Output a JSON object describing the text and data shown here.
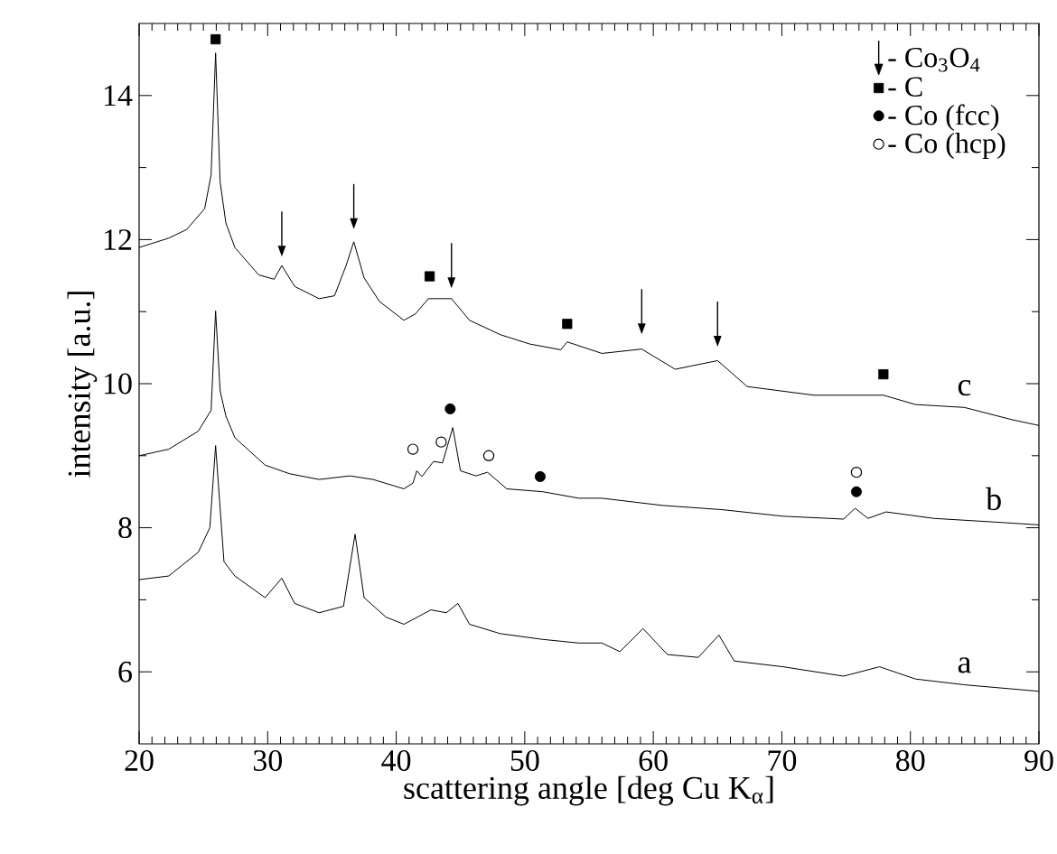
{
  "chart_data": {
    "type": "line",
    "xlabel": "scattering angle  [deg Cu K$_{α}$]",
    "ylabel": "intensity  [a.u.]",
    "xlim": [
      20,
      90
    ],
    "ylim": [
      5,
      15
    ],
    "xticks": [
      20,
      30,
      40,
      50,
      60,
      70,
      80,
      90
    ],
    "yticks": [
      6,
      8,
      10,
      12,
      14
    ],
    "legend": "top right",
    "series": [
      {
        "name": "c",
        "type": "line",
        "color": "#000000",
        "x": [
          20,
          22.3,
          23.7,
          25.1,
          25.6,
          25.95,
          26.3,
          26.75,
          27.45,
          29.3,
          30.5,
          31.1,
          32.1,
          34.0,
          35.2,
          36.1,
          36.7,
          37.5,
          38.7,
          40.6,
          41.5,
          42.5,
          44.3,
          45.7,
          48.1,
          50.4,
          52.8,
          53.3,
          56.0,
          59.1,
          61.7,
          65.0,
          67.3,
          72.5,
          77.9,
          80.4,
          84.2,
          87.9,
          90
        ],
        "values": [
          11.89,
          12.02,
          12.14,
          12.43,
          12.9,
          14.59,
          12.8,
          12.23,
          11.89,
          11.51,
          11.45,
          11.64,
          11.35,
          11.18,
          11.22,
          11.64,
          11.97,
          11.47,
          11.14,
          10.88,
          10.97,
          11.18,
          11.18,
          10.88,
          10.68,
          10.55,
          10.47,
          10.58,
          10.42,
          10.48,
          10.2,
          10.32,
          9.96,
          9.84,
          9.84,
          9.71,
          9.67,
          9.5,
          9.42
        ]
      },
      {
        "name": "b",
        "type": "line",
        "color": "#000000",
        "x": [
          20,
          22.3,
          24.6,
          25.6,
          25.95,
          26.3,
          26.75,
          27.45,
          29.8,
          31.7,
          34.0,
          36.4,
          38.2,
          40.6,
          41.3,
          41.6,
          42.0,
          42.9,
          43.6,
          44.4,
          45.0,
          46.2,
          47.1,
          48.6,
          51.4,
          54.2,
          56.0,
          60.7,
          65.4,
          70.1,
          74.8,
          75.7,
          76.7,
          78.1,
          81.8,
          86.5,
          90
        ],
        "values": [
          9.0,
          9.09,
          9.34,
          9.63,
          11.01,
          9.9,
          9.55,
          9.25,
          8.87,
          8.75,
          8.67,
          8.72,
          8.67,
          8.54,
          8.62,
          8.79,
          8.71,
          8.92,
          8.9,
          9.39,
          8.79,
          8.72,
          8.77,
          8.54,
          8.5,
          8.41,
          8.41,
          8.31,
          8.25,
          8.16,
          8.12,
          8.27,
          8.13,
          8.22,
          8.13,
          8.08,
          8.04
        ]
      },
      {
        "name": "a",
        "type": "line",
        "color": "#000000",
        "x": [
          20,
          22.3,
          24.6,
          25.5,
          25.95,
          26.6,
          27.45,
          29.8,
          31.1,
          32.1,
          34.0,
          35.9,
          36.8,
          37.5,
          39.2,
          40.6,
          42.7,
          43.9,
          44.8,
          45.7,
          48.1,
          51.4,
          54.2,
          56.0,
          57.4,
          59.2,
          61.1,
          63.5,
          65.1,
          66.3,
          70.1,
          74.8,
          77.6,
          80.4,
          84.2,
          90
        ],
        "values": [
          7.28,
          7.33,
          7.66,
          8.0,
          9.14,
          7.53,
          7.33,
          7.03,
          7.3,
          6.95,
          6.82,
          6.91,
          7.91,
          7.03,
          6.76,
          6.66,
          6.86,
          6.82,
          6.95,
          6.66,
          6.53,
          6.45,
          6.4,
          6.4,
          6.28,
          6.6,
          6.24,
          6.2,
          6.51,
          6.15,
          6.07,
          5.94,
          6.07,
          5.9,
          5.82,
          5.73
        ]
      },
      {
        "name": "- Co$_{3}$O$_{4}$",
        "type": "scatter",
        "marker": "triangle",
        "color": "#000000",
        "x": [
          31.1,
          36.7,
          44.3,
          59.1,
          65.0
        ],
        "values": [
          11.84,
          12.22,
          11.4,
          10.76,
          10.59
        ]
      },
      {
        "name": "- C",
        "type": "scatter",
        "marker": "square",
        "color": "#000000",
        "x": [
          25.95,
          42.6,
          53.3,
          77.9
        ],
        "values": [
          14.78,
          11.49,
          10.83,
          10.13
        ]
      },
      {
        "name": "- Co (fcc)",
        "type": "scatter",
        "marker": "circle",
        "color": "#000000",
        "x": [
          44.2,
          51.2,
          75.8
        ],
        "values": [
          9.65,
          8.71,
          8.5
        ]
      },
      {
        "name": "- Co (hcp)",
        "type": "scatter",
        "marker": "open circle",
        "color": "#000000",
        "x": [
          41.3,
          43.5,
          47.2,
          75.8
        ],
        "values": [
          9.09,
          9.19,
          9.0,
          8.77
        ]
      }
    ]
  }
}
